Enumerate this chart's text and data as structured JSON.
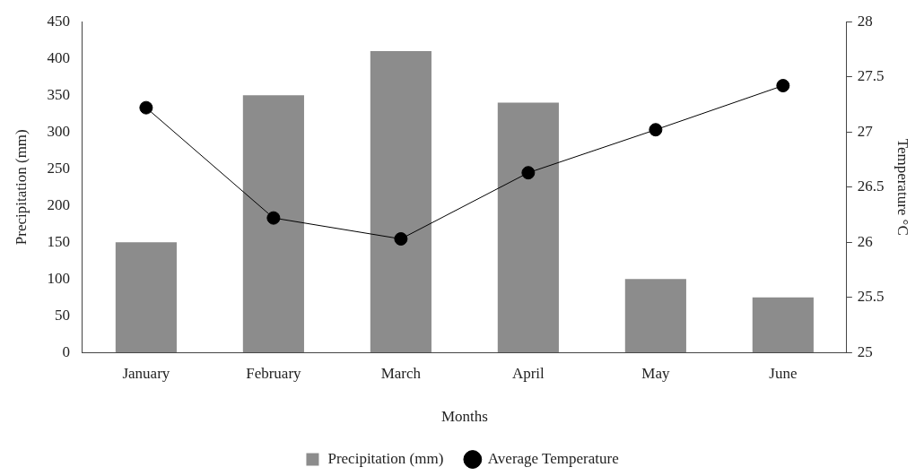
{
  "chart_data": {
    "type": "bar",
    "xlabel": "Months",
    "ylabel": "Precipitation (mm)",
    "y2label": "Temperature °C",
    "categories": [
      "January",
      "February",
      "March",
      "April",
      "May",
      "June"
    ],
    "series": [
      {
        "name": "Precipitation (mm)",
        "color": "#8c8c8c",
        "values": [
          150,
          350,
          410,
          340,
          100,
          75
        ]
      },
      {
        "name": "Average Temperature",
        "type": "line",
        "axis": "y2",
        "color": "#000000",
        "marker": "circle",
        "values": [
          27.22,
          26.22,
          26.03,
          26.63,
          27.02,
          27.42
        ]
      }
    ],
    "ylim": [
      0,
      450
    ],
    "yticks": [
      0,
      50,
      100,
      150,
      200,
      250,
      300,
      350,
      400,
      450
    ],
    "y2lim": [
      25,
      28
    ],
    "y2ticks": [
      25,
      25.5,
      26,
      26.5,
      27,
      27.5,
      28
    ],
    "grid": false,
    "legend": "bottom"
  }
}
